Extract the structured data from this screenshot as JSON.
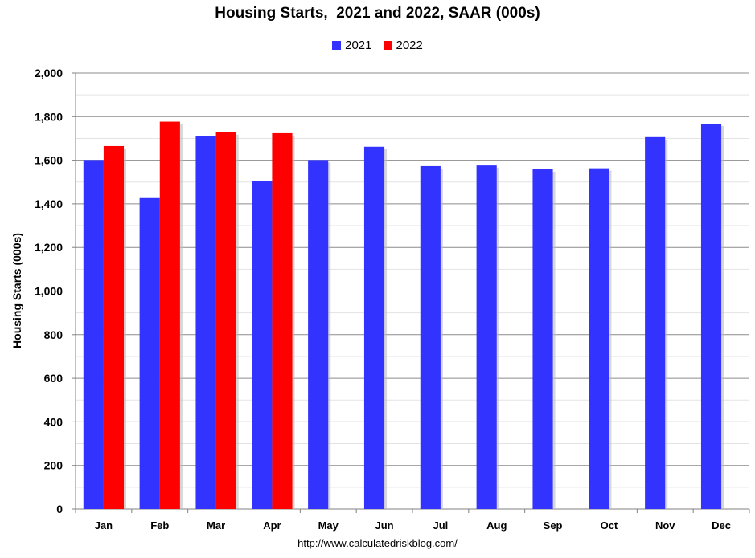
{
  "chart_data": {
    "type": "bar",
    "title": "Housing Starts,  2021 and 2022, SAAR (000s)",
    "xlabel": "",
    "ylabel": "Housing Starts (000s)",
    "ylim": [
      0,
      2000
    ],
    "yticks": [
      "0",
      "200",
      "400",
      "600",
      "800",
      "1,000",
      "1,200",
      "1,400",
      "1,600",
      "1,800",
      "2,000"
    ],
    "ytick_values": [
      0,
      200,
      400,
      600,
      800,
      1000,
      1200,
      1400,
      1600,
      1800,
      2000
    ],
    "categories": [
      "Jan",
      "Feb",
      "Mar",
      "Apr",
      "May",
      "Jun",
      "Jul",
      "Aug",
      "Sep",
      "Oct",
      "Nov",
      "Dec"
    ],
    "series": [
      {
        "name": "2021",
        "color": "#3333ff",
        "values": [
          1601,
          1430,
          1709,
          1503,
          1601,
          1662,
          1573,
          1576,
          1558,
          1563,
          1706,
          1768
        ]
      },
      {
        "name": "2022",
        "color": "#ff0000",
        "values": [
          1665,
          1777,
          1728,
          1724,
          null,
          null,
          null,
          null,
          null,
          null,
          null,
          null
        ]
      }
    ],
    "grid": true,
    "legend_position": "top-center",
    "source": "http://www.calculatedriskblog.com/"
  }
}
